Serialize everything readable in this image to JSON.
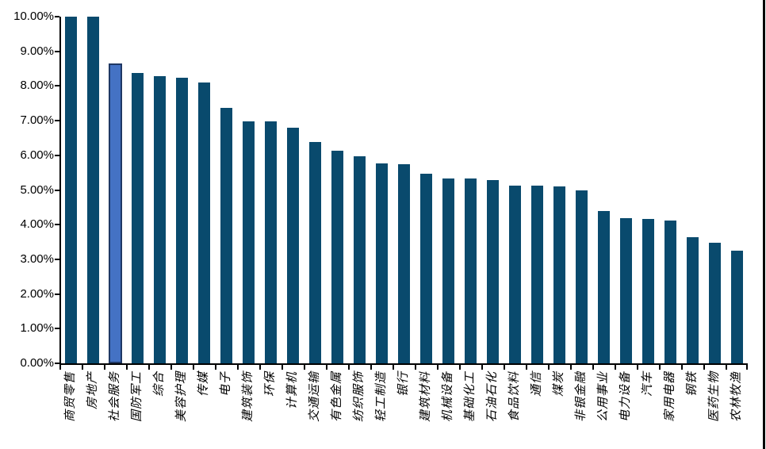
{
  "chart_data": {
    "type": "bar",
    "title": "",
    "xlabel": "",
    "ylabel": "",
    "grid": false,
    "legend": "none",
    "categories": [
      "商贸零售",
      "房地产",
      "社会服务",
      "国防军工",
      "综合",
      "美容护理",
      "传媒",
      "电子",
      "建筑装饰",
      "环保",
      "计算机",
      "交通运输",
      "有色金属",
      "纺织服饰",
      "轻工制造",
      "银行",
      "建筑材料",
      "机械设备",
      "基础化工",
      "石油石化",
      "食品饮料",
      "通信",
      "煤炭",
      "非银金融",
      "公用事业",
      "电力设备",
      "汽车",
      "家用电器",
      "钢铁",
      "医药生物",
      "农林牧渔"
    ],
    "values": [
      10.0,
      10.0,
      8.64,
      8.37,
      8.28,
      8.23,
      8.09,
      7.36,
      6.98,
      6.97,
      6.79,
      6.38,
      6.13,
      5.97,
      5.76,
      5.75,
      5.48,
      5.34,
      5.33,
      5.29,
      5.13,
      5.12,
      5.11,
      5.0,
      4.4,
      4.18,
      4.17,
      4.13,
      3.64,
      3.47,
      3.24
    ],
    "highlight": {
      "index": 2,
      "category": "社会服务"
    },
    "y_axis": {
      "min": 0,
      "max": 10,
      "step": 1,
      "format": "percent",
      "tick_labels": [
        "0.00%",
        "1.00%",
        "2.00%",
        "3.00%",
        "4.00%",
        "5.00%",
        "6.00%",
        "7.00%",
        "8.00%",
        "9.00%",
        "10.00%"
      ]
    },
    "colors": {
      "bar": "#094A6D",
      "highlight_fill": "#4472C4",
      "highlight_border": "#1F3864",
      "axis": "#000000",
      "text": "#000000"
    }
  },
  "frame": {
    "background": "#FFFFFF",
    "right_rule_color": "#000000"
  }
}
